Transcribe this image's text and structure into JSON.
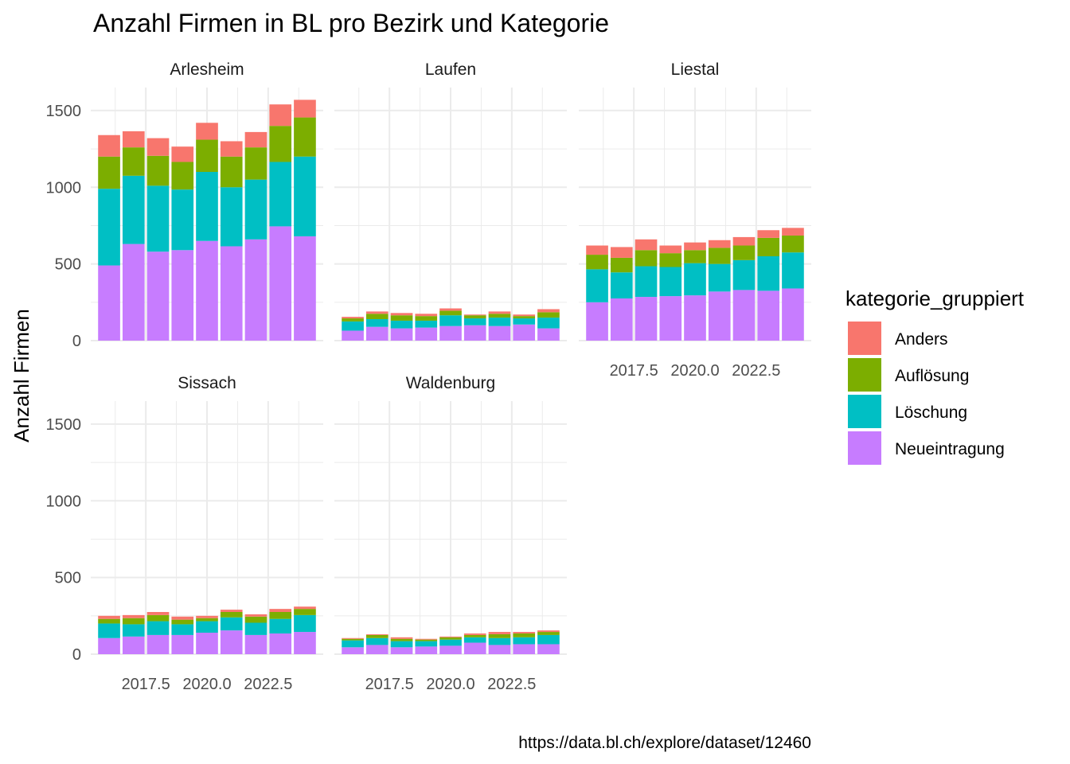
{
  "chart_data": {
    "type": "bar",
    "stacked": true,
    "faceted": true,
    "title": "Anzahl Firmen in BL pro Bezirk und Kategorie",
    "ylabel": "Anzahl Firmen",
    "xlabel": "",
    "caption": "https://data.bl.ch/explore/dataset/12460",
    "x": [
      2016,
      2017,
      2018,
      2019,
      2020,
      2021,
      2022,
      2023,
      2024
    ],
    "x_ticks": [
      2017.5,
      2020.0,
      2022.5
    ],
    "x_tick_labels": [
      "2017.5",
      "2020.0",
      "2022.5"
    ],
    "xlim": [
      2015.25,
      2024.75
    ],
    "ylim": [
      0,
      1650
    ],
    "y_ticks": [
      0,
      500,
      1000,
      1500
    ],
    "y_tick_labels": [
      "0",
      "500",
      "1000",
      "1500"
    ],
    "grid": true,
    "legend": {
      "title": "kategorie_gruppiert",
      "position": "right",
      "entries": [
        {
          "name": "Anders",
          "color": "#F8766D"
        },
        {
          "name": "Auflösung",
          "color": "#7CAE00"
        },
        {
          "name": "Löschung",
          "color": "#00BFC4"
        },
        {
          "name": "Neueintragung",
          "color": "#C77CFF"
        }
      ]
    },
    "stack_order_bottom_to_top": [
      "Neueintragung",
      "Löschung",
      "Auflösung",
      "Anders"
    ],
    "facets": [
      {
        "name": "Arlesheim",
        "series": [
          {
            "name": "Neueintragung",
            "values": [
              490,
              630,
              580,
              590,
              650,
              615,
              660,
              745,
              680
            ]
          },
          {
            "name": "Löschung",
            "values": [
              500,
              445,
              430,
              395,
              450,
              385,
              390,
              420,
              520
            ]
          },
          {
            "name": "Auflösung",
            "values": [
              210,
              185,
              195,
              180,
              210,
              200,
              210,
              235,
              255
            ]
          },
          {
            "name": "Anders",
            "values": [
              140,
              105,
              115,
              100,
              110,
              100,
              100,
              140,
              115
            ]
          }
        ]
      },
      {
        "name": "Laufen",
        "series": [
          {
            "name": "Neueintragung",
            "values": [
              65,
              90,
              80,
              85,
              95,
              100,
              95,
              105,
              80
            ]
          },
          {
            "name": "Löschung",
            "values": [
              60,
              50,
              50,
              45,
              70,
              45,
              55,
              40,
              70
            ]
          },
          {
            "name": "Auflösung",
            "values": [
              20,
              35,
              35,
              30,
              30,
              20,
              25,
              15,
              35
            ]
          },
          {
            "name": "Anders",
            "values": [
              10,
              15,
              15,
              15,
              15,
              5,
              15,
              10,
              20
            ]
          }
        ]
      },
      {
        "name": "Liestal",
        "series": [
          {
            "name": "Neueintragung",
            "values": [
              250,
              275,
              285,
              290,
              295,
              320,
              330,
              325,
              340
            ]
          },
          {
            "name": "Löschung",
            "values": [
              215,
              170,
              200,
              190,
              210,
              180,
              195,
              225,
              235
            ]
          },
          {
            "name": "Auflösung",
            "values": [
              95,
              95,
              105,
              90,
              85,
              105,
              95,
              120,
              110
            ]
          },
          {
            "name": "Anders",
            "values": [
              60,
              70,
              70,
              50,
              50,
              50,
              55,
              50,
              50
            ]
          }
        ]
      },
      {
        "name": "Sissach",
        "series": [
          {
            "name": "Neueintragung",
            "values": [
              105,
              115,
              125,
              125,
              140,
              155,
              125,
              135,
              145
            ]
          },
          {
            "name": "Löschung",
            "values": [
              95,
              80,
              90,
              70,
              75,
              85,
              80,
              95,
              110
            ]
          },
          {
            "name": "Auflösung",
            "values": [
              30,
              40,
              40,
              30,
              20,
              35,
              40,
              45,
              40
            ]
          },
          {
            "name": "Anders",
            "values": [
              20,
              20,
              20,
              20,
              15,
              15,
              15,
              20,
              15
            ]
          }
        ]
      },
      {
        "name": "Waldenburg",
        "series": [
          {
            "name": "Neueintragung",
            "values": [
              45,
              60,
              45,
              50,
              55,
              75,
              60,
              65,
              65
            ]
          },
          {
            "name": "Löschung",
            "values": [
              45,
              45,
              40,
              35,
              40,
              35,
              45,
              45,
              60
            ]
          },
          {
            "name": "Auflösung",
            "values": [
              10,
              20,
              15,
              10,
              15,
              15,
              25,
              25,
              20
            ]
          },
          {
            "name": "Anders",
            "values": [
              5,
              5,
              10,
              5,
              5,
              10,
              15,
              10,
              10
            ]
          }
        ]
      }
    ]
  }
}
